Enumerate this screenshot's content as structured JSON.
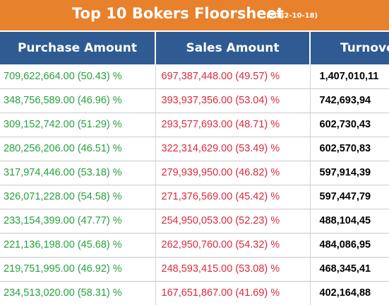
{
  "title": {
    "text": "Top 10 Bokers Floorsheet",
    "date": "(2082-10-18)"
  },
  "colors": {
    "title_bar": "#e8812b",
    "header": "#2f5b92",
    "purchase_text": "#27a13c",
    "sales_text": "#d92b3a"
  },
  "columns": {
    "purchase": "Purchase Amount",
    "sales": "Sales Amount",
    "turnover": "Turnove"
  },
  "rows": [
    {
      "purchase": "709,622,664.00 (50.43) %",
      "sales": "697,387,448.00 (49.57) %",
      "turnover": "1,407,010,11"
    },
    {
      "purchase": "348,756,589.00 (46.96) %",
      "sales": "393,937,356.00 (53.04) %",
      "turnover": "742,693,94"
    },
    {
      "purchase": "309,152,742.00 (51.29) %",
      "sales": "293,577,693.00 (48.71) %",
      "turnover": "602,730,43"
    },
    {
      "purchase": "280,256,206.00 (46.51) %",
      "sales": "322,314,629.00 (53.49) %",
      "turnover": "602,570,83"
    },
    {
      "purchase": "317,974,446.00 (53.18) %",
      "sales": "279,939,950.00 (46.82) %",
      "turnover": "597,914,39"
    },
    {
      "purchase": "326,071,228.00 (54.58) %",
      "sales": "271,376,569.00 (45.42) %",
      "turnover": "597,447,79"
    },
    {
      "purchase": "233,154,399.00 (47.77) %",
      "sales": "254,950,053.00 (52.23) %",
      "turnover": "488,104,45"
    },
    {
      "purchase": "221,136,198.00 (45.68) %",
      "sales": "262,950,760.00 (54.32) %",
      "turnover": "484,086,95"
    },
    {
      "purchase": "219,751,995.00 (46.92) %",
      "sales": "248,593,415.00 (53.08) %",
      "turnover": "468,345,41"
    },
    {
      "purchase": "234,513,020.00 (58.31) %",
      "sales": "167,651,867.00 (41.69) %",
      "turnover": "402,164,88"
    }
  ]
}
